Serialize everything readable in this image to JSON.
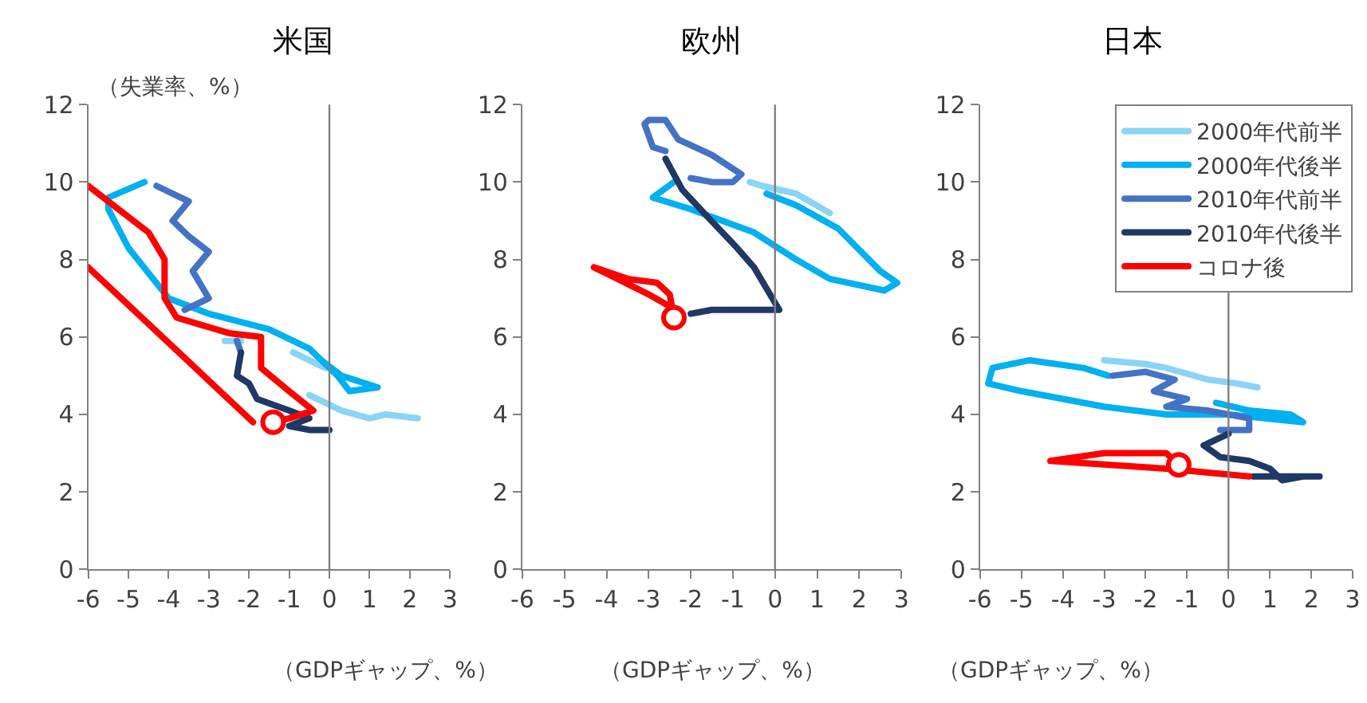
{
  "chart_data": [
    {
      "type": "line",
      "title": "米国",
      "ylabel": "（失業率、%）",
      "xlabel": "（GDPギャップ、%）",
      "xlim": [
        -6,
        3
      ],
      "xticks": [
        -6,
        -5,
        -4,
        -3,
        -2,
        -1,
        0,
        1,
        2,
        3
      ],
      "ylim": [
        0,
        12
      ],
      "yticks": [
        0,
        2,
        4,
        6,
        8,
        10,
        12
      ],
      "legend": false,
      "ref_lines": [
        {
          "axis": "x",
          "value": 0,
          "color": "#808080"
        }
      ],
      "series": [
        {
          "color": "#8ad4f5",
          "x": [
            2.2,
            1.4,
            1.0,
            0.3,
            -0.5,
            null,
            -0.9,
            -0.5,
            -0.1,
            null,
            -2.2,
            -2.6
          ],
          "values": [
            3.9,
            4.0,
            3.9,
            4.1,
            4.5,
            null,
            5.6,
            5.4,
            5.2,
            null,
            5.9,
            5.9
          ]
        },
        {
          "color": "#00b0f0",
          "x": [
            -0.2,
            0.3,
            1.2,
            0.5,
            0.2,
            -0.5,
            -1.5,
            -3,
            -4,
            -5,
            -5.5,
            -5.5,
            -4.6
          ],
          "values": [
            5.4,
            5.0,
            4.7,
            4.6,
            5.0,
            5.7,
            6.2,
            6.6,
            7.0,
            8.3,
            9.3,
            9.6,
            10.0
          ]
        },
        {
          "color": "#4472c4",
          "x": [
            -4.3,
            -3.5,
            -3.9,
            -3.5,
            -3.0,
            -3.4,
            -3.0,
            -3.6,
            null,
            -2.3,
            -2.2
          ],
          "values": [
            9.9,
            9.5,
            9.0,
            8.6,
            8.2,
            7.7,
            7.0,
            6.7,
            null,
            5.9,
            5.6
          ]
        },
        {
          "color": "#1f3864",
          "x": [
            -2.2,
            -2.3,
            -2.0,
            -1.8,
            -1.0,
            -0.5,
            -1.0,
            -0.5,
            0
          ],
          "values": [
            5.6,
            5.0,
            4.8,
            4.4,
            4.1,
            3.9,
            3.7,
            3.6,
            3.6
          ]
        },
        {
          "color": "#ff0000",
          "x": [
            -1.9,
            -6,
            null,
            -6,
            -4.5,
            -4.1,
            -4.1,
            -3.8,
            -2.5,
            -1.7,
            -1.7,
            -1.0,
            -0.4,
            -1.0,
            -1.4
          ],
          "values": [
            3.8,
            7.8,
            null,
            9.9,
            8.7,
            8.0,
            7.0,
            6.5,
            6.1,
            6.0,
            5.2,
            4.6,
            4.1,
            3.9,
            3.8
          ]
        },
        {
          "type": "scatter",
          "marker": "circle",
          "color": "#ff0000",
          "x": [
            -1.4
          ],
          "values": [
            3.8
          ]
        }
      ]
    },
    {
      "type": "line",
      "title": "欧州",
      "xlabel": "（GDPギャップ、%）",
      "xlim": [
        -6,
        3
      ],
      "xticks": [
        -6,
        -5,
        -4,
        -3,
        -2,
        -1,
        0,
        1,
        2,
        3
      ],
      "ylim": [
        0,
        12
      ],
      "yticks": [
        0,
        2,
        4,
        6,
        8,
        10,
        12
      ],
      "legend": false,
      "ref_lines": [
        {
          "axis": "x",
          "value": 0,
          "color": "#808080"
        }
      ],
      "series": [
        {
          "color": "#8ad4f5",
          "x": [
            1.3,
            0.5,
            -0.3,
            -0.6
          ],
          "values": [
            9.2,
            9.7,
            9.9,
            10.0
          ]
        },
        {
          "color": "#00b0f0",
          "x": [
            -0.2,
            0.5,
            1.5,
            2.5,
            2.9,
            2.6,
            1.3,
            0.5,
            -0.5,
            -2,
            -2.9,
            -2.4
          ],
          "values": [
            9.7,
            9.4,
            8.8,
            7.7,
            7.4,
            7.2,
            7.5,
            8.0,
            8.7,
            9.3,
            9.6,
            10.0
          ]
        },
        {
          "color": "#4472c4",
          "x": [
            -2.0,
            -1.5,
            -1.0,
            -0.8,
            -1.5,
            -2.3,
            -2.6,
            -3.0,
            -3.1,
            -2.9,
            -2.6
          ],
          "values": [
            10.1,
            10.0,
            10.0,
            10.2,
            10.7,
            11.1,
            11.6,
            11.6,
            11.5,
            10.9,
            10.8
          ]
        },
        {
          "color": "#1f3864",
          "x": [
            -2.6,
            -2.2,
            -1.6,
            -0.9,
            -0.5,
            0.1,
            -0.5,
            -1.5,
            -2.0
          ],
          "values": [
            10.6,
            9.8,
            9.1,
            8.3,
            7.8,
            6.7,
            6.7,
            6.7,
            6.6
          ]
        },
        {
          "color": "#ff0000",
          "x": [
            -2.2,
            -3.0,
            -4.3,
            -3.5,
            -2.8,
            -2.5,
            -2.4
          ],
          "values": [
            6.6,
            7.1,
            7.8,
            7.5,
            7.4,
            7.1,
            6.5
          ]
        },
        {
          "type": "scatter",
          "marker": "circle",
          "color": "#ff0000",
          "x": [
            -2.4
          ],
          "values": [
            6.5
          ]
        }
      ]
    },
    {
      "type": "line",
      "title": "日本",
      "xlabel": "（GDPギャップ、%）",
      "xlim": [
        -6,
        3
      ],
      "xticks": [
        -6,
        -5,
        -4,
        -3,
        -2,
        -1,
        0,
        1,
        2,
        3
      ],
      "ylim": [
        0,
        12
      ],
      "yticks": [
        0,
        2,
        4,
        6,
        8,
        10,
        12
      ],
      "legend": "top right",
      "ref_lines": [
        {
          "axis": "x",
          "value": 0,
          "color": "#808080"
        }
      ],
      "series": [
        {
          "name": "2000年代前半",
          "color": "#8ad4f5",
          "x": [
            -3,
            -2,
            -1.5,
            -0.5,
            0.2,
            0.7
          ],
          "values": [
            5.4,
            5.3,
            5.2,
            4.9,
            4.8,
            4.7
          ]
        },
        {
          "name": "2000年代後半",
          "color": "#00b0f0",
          "x": [
            -0.3,
            0.5,
            1.5,
            1.8,
            0,
            -1.5,
            -3,
            -5,
            -5.8,
            -5.7,
            -4.8,
            -3.5,
            -2.9
          ],
          "values": [
            4.3,
            4.1,
            4.0,
            3.8,
            4.0,
            4.0,
            4.2,
            4.6,
            4.8,
            5.2,
            5.4,
            5.2,
            5.0
          ]
        },
        {
          "name": "2010年代前半",
          "color": "#4472c4",
          "x": [
            -2.8,
            -2.0,
            -1.3,
            -1.8,
            -1.0,
            -1.5,
            -0.5,
            0.5,
            0.5,
            -0.2
          ],
          "values": [
            5.0,
            5.1,
            4.9,
            4.6,
            4.4,
            4.2,
            4.1,
            3.9,
            3.6,
            3.6
          ]
        },
        {
          "name": "2010年代後半",
          "color": "#1f3864",
          "x": [
            0,
            -0.6,
            -0.2,
            0.5,
            1.0,
            1.3,
            1.8,
            2.2,
            1.2,
            0.6
          ],
          "values": [
            3.5,
            3.2,
            2.9,
            2.8,
            2.6,
            2.3,
            2.4,
            2.4,
            2.4,
            2.4
          ]
        },
        {
          "name": "コロナ後",
          "color": "#ff0000",
          "x": [
            0.5,
            -1.5,
            -4.3,
            -3,
            -1.5,
            -1.2
          ],
          "values": [
            2.4,
            2.6,
            2.8,
            3.0,
            3.0,
            2.7
          ]
        },
        {
          "type": "scatter",
          "marker": "circle",
          "color": "#ff0000",
          "x": [
            -1.2
          ],
          "values": [
            2.7
          ]
        }
      ]
    }
  ]
}
